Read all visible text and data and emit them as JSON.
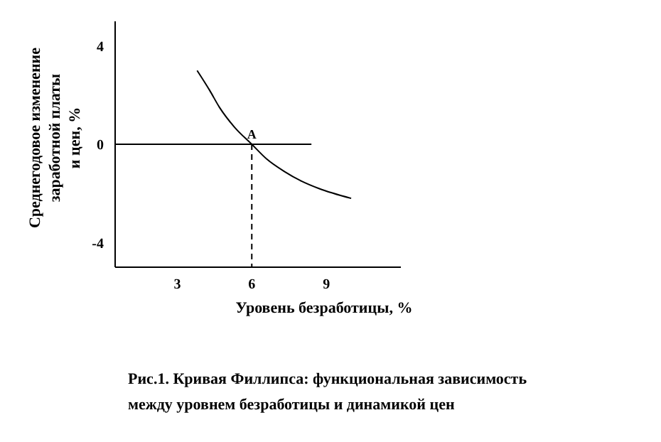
{
  "chart_data": {
    "type": "line",
    "xlabel": "Уровень безработицы, %",
    "ylabel": "Среднегодовое изменение заработной платы и цен, %",
    "annotations": [
      {
        "text": "A",
        "x": 6,
        "y": 0
      },
      "Рис.1. Кривая Филлипса: функциональная зависимость между уровнем безработицы и динамикой цен"
    ],
    "series": [
      {
        "color": "#000000",
        "x": [
          3.8,
          4.3,
          4.7,
          5.3,
          6,
          6.6,
          7.3,
          8,
          8.7,
          10
        ],
        "values": [
          3,
          2.2,
          1.5,
          0.7,
          0,
          -0.6,
          -1.1,
          -1.5,
          -1.8,
          -2.2
        ]
      },
      {
        "color": "#000000",
        "x": [
          0.5,
          8.4
        ],
        "values": [
          0,
          0
        ]
      },
      {
        "color": "#000000",
        "line_style": "dashed",
        "x": [
          6,
          6
        ],
        "values": [
          0,
          -5
        ]
      }
    ],
    "xlim": [
      0.5,
      12
    ],
    "xticks": [
      3,
      6,
      9
    ],
    "ylim": [
      -5,
      5
    ],
    "yticks": [
      -4,
      0,
      4
    ]
  }
}
